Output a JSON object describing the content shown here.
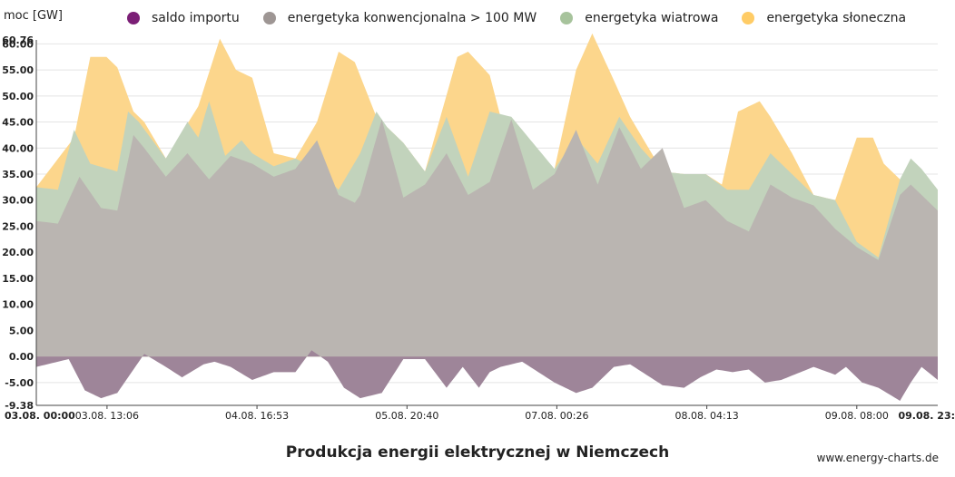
{
  "chart_data": {
    "type": "area",
    "title": "Produkcja energii elektrycznej w Niemczech",
    "ylabel": "moc [GW]",
    "ylim": [
      -9.38,
      60.76
    ],
    "y_ticks": [
      "60.76",
      "60.00",
      "55.00",
      "50.00",
      "45.00",
      "40.00",
      "35.00",
      "30.00",
      "25.00",
      "20.00",
      "15.00",
      "10.00",
      "5.00",
      "0.00",
      "-5.00",
      "-9.38"
    ],
    "x_ticks": [
      "03.08. 00:00",
      "03.08. 13:06",
      "04.08. 16:53",
      "05.08. 20:40",
      "07.08. 00:26",
      "08.08. 04:13",
      "09.08. 08:00",
      "09.08. 23:"
    ],
    "x_range_hours": [
      0,
      167
    ],
    "legend": [
      "saldo importu",
      "energetyka konwencjonalna > 100 MW",
      "energetyka wiatrowa",
      "energetyka słoneczna"
    ],
    "colors": {
      "saldo": "#9e8599",
      "konwencjonalna": "#bab5b1",
      "wiatrowa": "#c2d3bc",
      "sloneczna": "#fcd68c",
      "saldo_legend": "#7b1f76",
      "konwencjonalna_legend": "#9e9694",
      "wiatrowa_legend": "#a7c39c",
      "sloneczna_legend": "#ffcc66"
    },
    "series": [
      {
        "name": "saldo importu",
        "x": [
          0,
          6,
          9,
          12,
          15,
          19,
          20,
          24,
          27,
          31,
          33,
          36,
          40,
          44,
          48,
          51,
          54,
          57,
          60,
          64,
          68,
          72,
          76,
          79,
          82,
          84,
          86,
          90,
          96,
          100,
          103,
          107,
          110,
          116,
          120,
          123,
          126,
          129,
          132,
          135,
          138,
          144,
          148,
          150,
          153,
          156,
          160,
          162,
          164,
          167
        ],
        "values": [
          -2.0,
          -0.5,
          -6.5,
          -8.0,
          -7.0,
          -1.0,
          0.5,
          -2.0,
          -4.0,
          -1.5,
          -1.0,
          -2.0,
          -4.5,
          -3.0,
          -3.0,
          1.2,
          -1.0,
          -6.0,
          -8.0,
          -7.0,
          -0.5,
          -0.5,
          -6.0,
          -2.0,
          -6.0,
          -3.0,
          -2.0,
          -1.0,
          -5.0,
          -7.0,
          -6.0,
          -2.0,
          -1.5,
          -5.5,
          -6.0,
          -4.0,
          -2.5,
          -3.0,
          -2.5,
          -5.0,
          -4.5,
          -2.0,
          -3.5,
          -2.0,
          -5.0,
          -6.0,
          -8.5,
          -5.0,
          -2.0,
          -4.5
        ]
      },
      {
        "name": "energetyka konwencjonalna > 100 MW",
        "x": [
          0,
          4,
          8,
          12,
          15,
          18,
          20,
          24,
          28,
          32,
          36,
          40,
          44,
          48,
          52,
          56,
          59,
          60,
          64,
          68,
          72,
          76,
          80,
          84,
          88,
          92,
          96,
          100,
          104,
          108,
          112,
          116,
          120,
          124,
          128,
          132,
          136,
          140,
          144,
          148,
          152,
          156,
          160,
          162,
          164,
          167
        ],
        "values": [
          26,
          25.5,
          34.5,
          28.5,
          28,
          42.5,
          40,
          34.5,
          39,
          34,
          38.5,
          37,
          34.5,
          36,
          41.5,
          31,
          29.5,
          31,
          45.5,
          30.5,
          33,
          39,
          31,
          33.5,
          45.5,
          32,
          35,
          43.5,
          33,
          44,
          36,
          40,
          28.5,
          30,
          26,
          24,
          33,
          30.5,
          29,
          24.5,
          21,
          18.5,
          31,
          33,
          31,
          28
        ]
      },
      {
        "name": "energetyka wiatrowa",
        "x": [
          0,
          4,
          7,
          10,
          15,
          17,
          19,
          24,
          28,
          30,
          32,
          35,
          38,
          40,
          44,
          48,
          52,
          56,
          60,
          63,
          65,
          68,
          72,
          76,
          80,
          84,
          88,
          92,
          96,
          100,
          104,
          108,
          112,
          116,
          120,
          124,
          128,
          132,
          136,
          140,
          144,
          148,
          152,
          156,
          160,
          162,
          164,
          167
        ],
        "values": [
          32.5,
          32,
          43.5,
          37,
          35.5,
          47,
          45,
          38,
          45,
          42,
          49,
          38.5,
          41.5,
          39,
          36.5,
          38,
          36,
          32,
          39,
          47,
          44,
          41,
          35.5,
          46,
          34.5,
          47,
          46,
          41,
          36,
          42,
          37,
          46,
          40,
          35.5,
          35,
          35,
          32,
          32,
          39,
          35,
          31,
          30,
          22,
          19,
          34,
          38,
          36,
          32
        ]
      },
      {
        "name": "energetyka słoneczna",
        "x": [
          0,
          7,
          10,
          13,
          15,
          18,
          20,
          24,
          30,
          34,
          37,
          40,
          44,
          48,
          52,
          56,
          59,
          63,
          68,
          72,
          78,
          80,
          84,
          86,
          90,
          96,
          100,
          103,
          107,
          110,
          116,
          120,
          124,
          127,
          130,
          134,
          136,
          140,
          144,
          148,
          152,
          155,
          157,
          160,
          167
        ],
        "values": [
          32.5,
          42,
          57.5,
          57.5,
          55.5,
          47,
          45,
          38,
          48,
          61,
          55,
          53.5,
          39,
          38,
          45,
          58.5,
          56.5,
          46,
          41,
          35.5,
          57.5,
          58.5,
          54,
          46,
          41.5,
          36,
          55,
          62,
          53,
          46,
          35.5,
          35,
          35,
          33,
          47,
          49,
          46,
          39,
          31,
          30,
          42,
          42,
          37,
          34,
          32
        ]
      }
    ]
  },
  "footer": {
    "credit": "www.energy-charts.de"
  }
}
